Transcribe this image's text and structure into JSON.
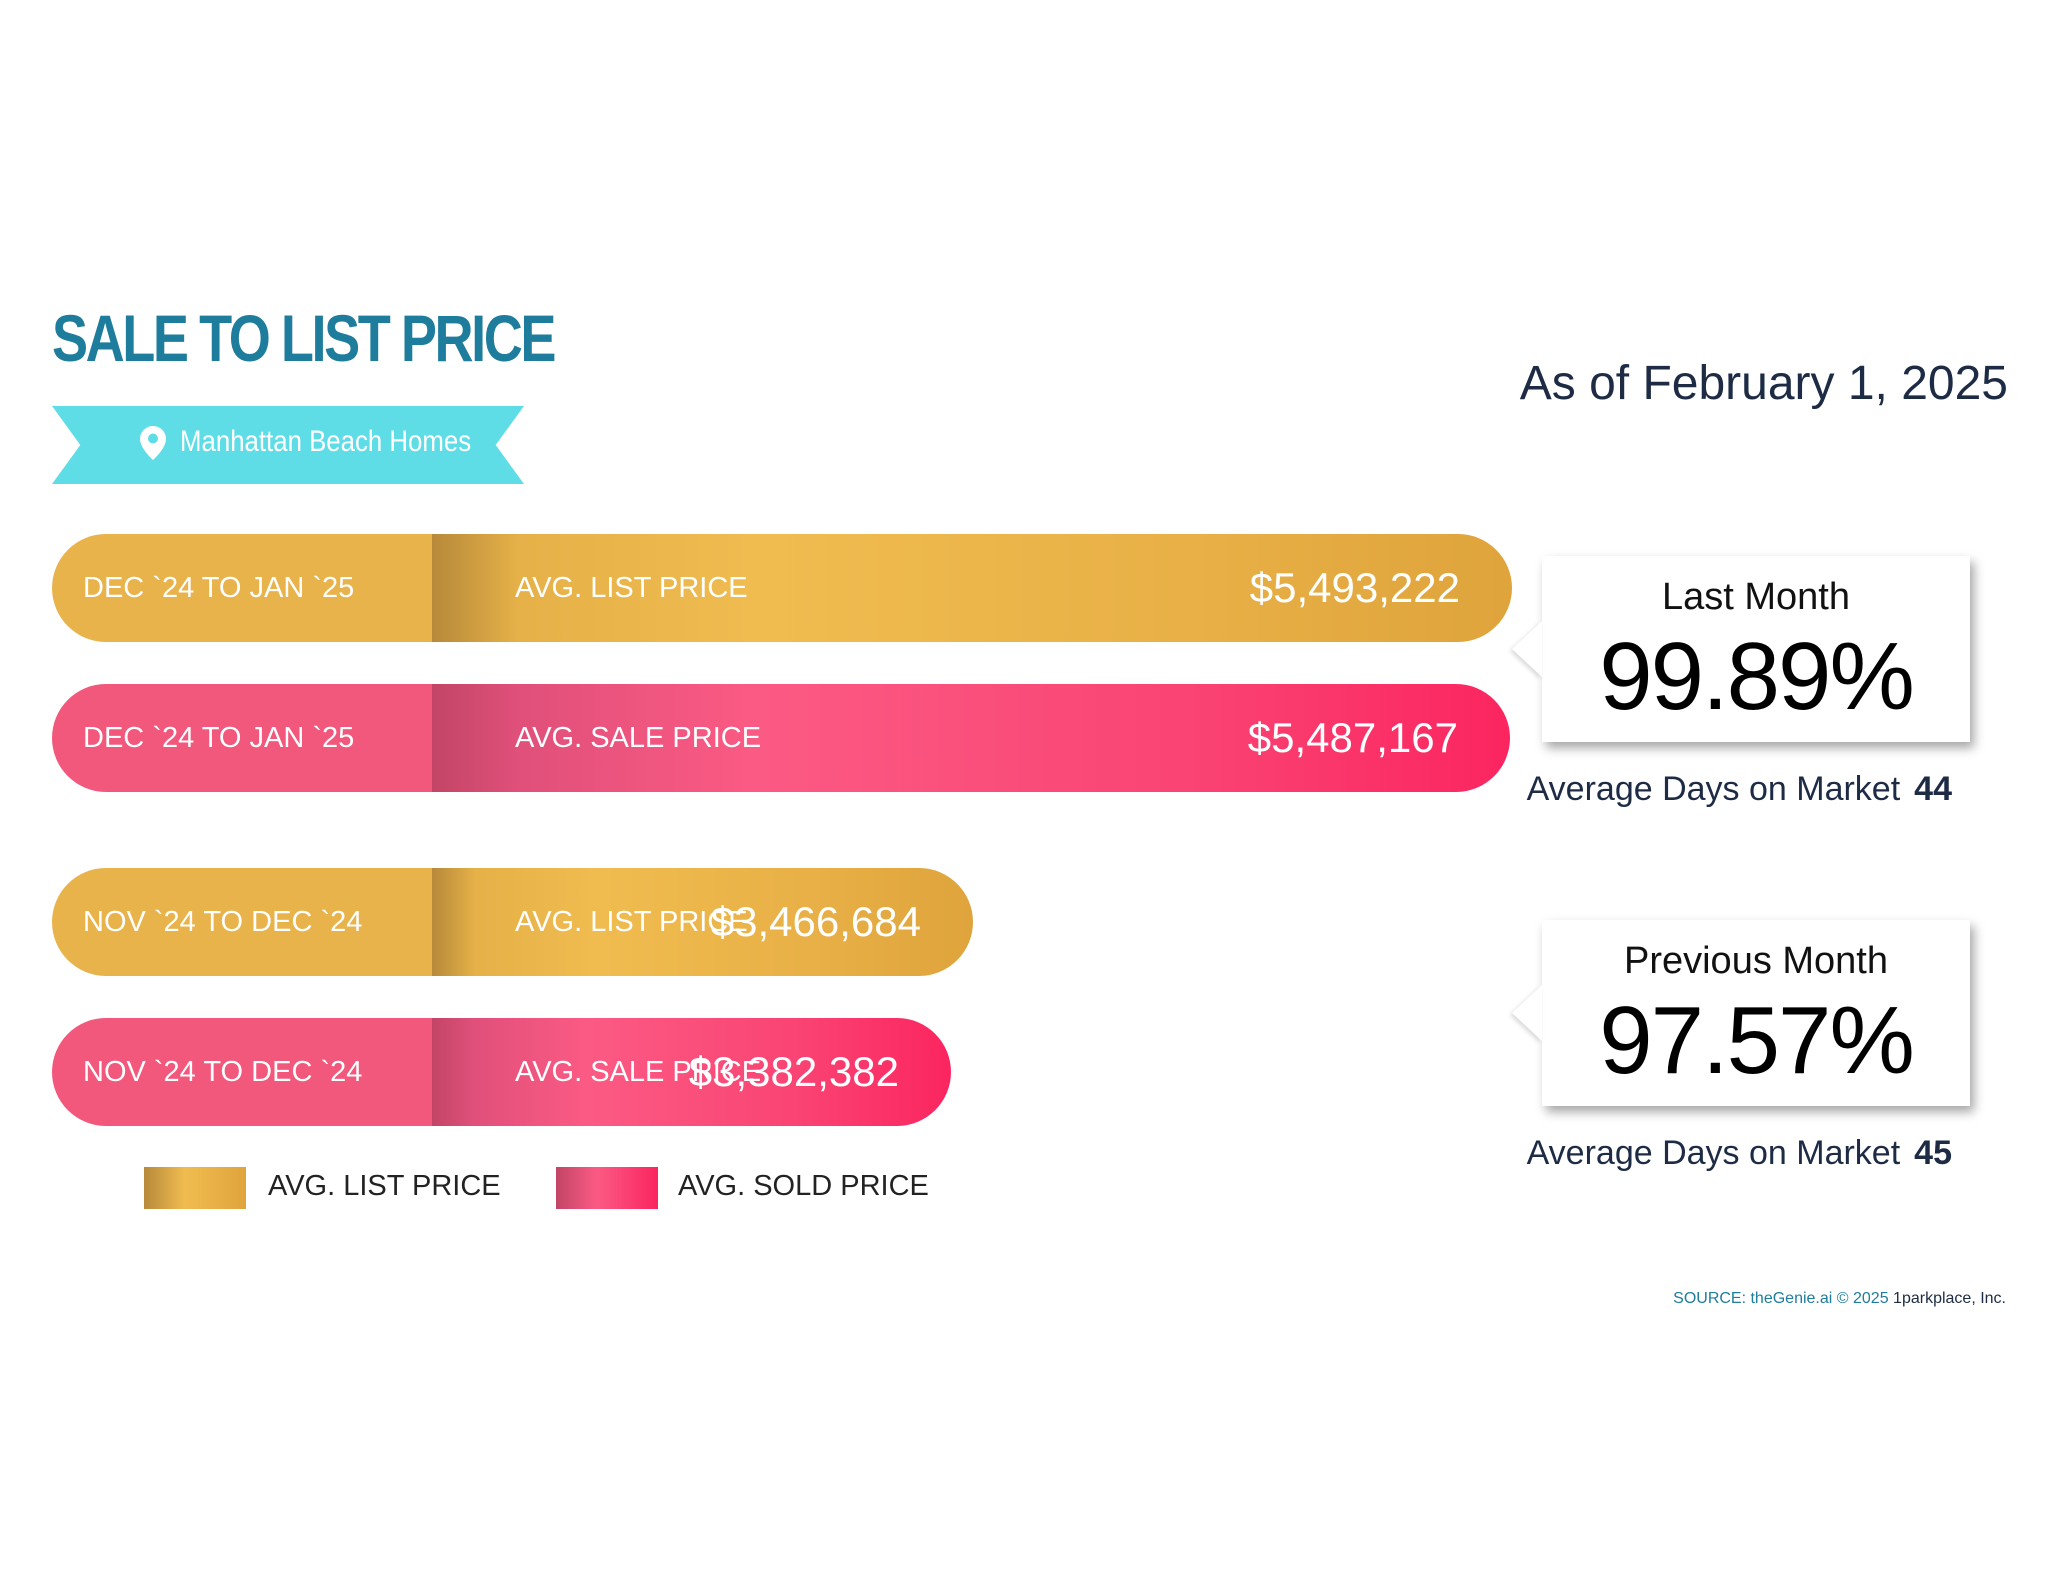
{
  "title": "SALE TO LIST PRICE",
  "location": "Manhattan Beach Homes",
  "as_of": "As of February 1, 2025",
  "colors": {
    "list": "#e9b34c",
    "sale": "#f9466f",
    "title": "#1e7d9c",
    "ribbon": "#5fdde6"
  },
  "bars": [
    {
      "period": "DEC `24 TO JAN `25",
      "type": "AVG. LIST PRICE",
      "value_label": "$5,493,222",
      "value": 5493222
    },
    {
      "period": "DEC `24 TO JAN `25",
      "type": "AVG. SALE PRICE",
      "value_label": "$5,487,167",
      "value": 5487167
    },
    {
      "period": "NOV `24 TO DEC `24",
      "type": "AVG. LIST PRICE",
      "value_label": "$3,466,684",
      "value": 3466684
    },
    {
      "period": "NOV `24 TO DEC `24",
      "type": "AVG. SALE PRICE",
      "value_label": "$3,382,382",
      "value": 3382382
    }
  ],
  "callouts": [
    {
      "title": "Last Month",
      "value": "99.89%",
      "dom_label": "Average Days on Market",
      "dom_value": "44"
    },
    {
      "title": "Previous Month",
      "value": "97.57%",
      "dom_label": "Average Days on Market",
      "dom_value": "45"
    }
  ],
  "legend": {
    "list": "AVG. LIST PRICE",
    "sold": "AVG. SOLD PRICE"
  },
  "source": {
    "prefix": "SOURCE: theGenie.ai © 2025",
    "suffix": "1parkplace, Inc."
  },
  "chart_data": {
    "type": "bar",
    "title": "SALE TO LIST PRICE",
    "categories": [
      "DEC `24 TO JAN `25",
      "NOV `24 TO DEC `24"
    ],
    "series": [
      {
        "name": "AVG. LIST PRICE",
        "values": [
          5493222,
          3466684
        ]
      },
      {
        "name": "AVG. SOLD PRICE",
        "values": [
          5487167,
          3382382
        ]
      }
    ],
    "orientation": "horizontal",
    "legend": "bottom-left"
  }
}
